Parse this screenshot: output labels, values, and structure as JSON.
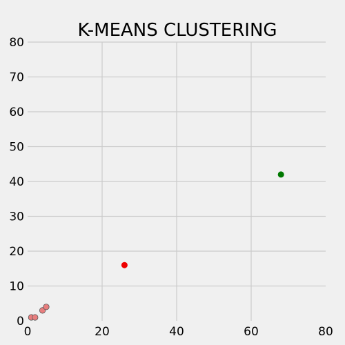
{
  "chart_data": {
    "type": "scatter",
    "title": "K-MEANS CLUSTERING",
    "xlabel": "",
    "ylabel": "",
    "xlim": [
      0,
      80
    ],
    "ylim": [
      0,
      80
    ],
    "xticks": [
      "0",
      "20",
      "40",
      "60",
      "80"
    ],
    "yticks": [
      "0",
      "10",
      "20",
      "30",
      "40",
      "50",
      "60",
      "70",
      "80"
    ],
    "grid": true,
    "series": [
      {
        "color": "#e87e7e",
        "edge_color": "#555555",
        "marker": "data-point",
        "points": [
          {
            "x": 1,
            "y": 1
          },
          {
            "x": 2,
            "y": 1
          },
          {
            "x": 4,
            "y": 3
          },
          {
            "x": 5,
            "y": 4
          }
        ]
      },
      {
        "color": "#ee0000",
        "marker": "centroid",
        "points": [
          {
            "x": 26,
            "y": 16
          }
        ]
      },
      {
        "color": "#007800",
        "marker": "centroid",
        "points": [
          {
            "x": 68,
            "y": 42
          }
        ]
      }
    ]
  }
}
